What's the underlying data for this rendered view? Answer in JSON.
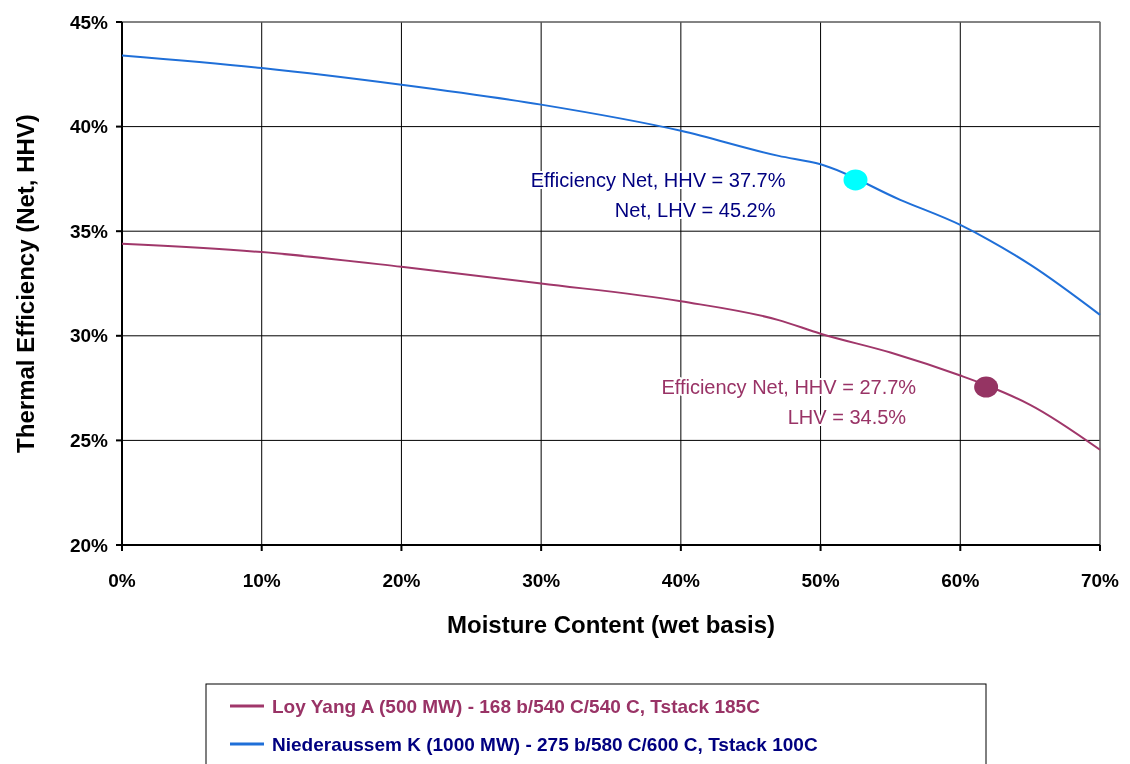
{
  "chart_data": {
    "type": "line",
    "xlabel": "Moisture Content (wet basis)",
    "ylabel": "Thermal Efficiency (Net, HHV)",
    "xlim": [
      0,
      70
    ],
    "xticks": [
      {
        "value": 0,
        "label": "0%"
      },
      {
        "value": 10,
        "label": "10%"
      },
      {
        "value": 20,
        "label": "20%"
      },
      {
        "value": 30,
        "label": "30%"
      },
      {
        "value": 40,
        "label": "40%"
      },
      {
        "value": 50,
        "label": "50%"
      },
      {
        "value": 60,
        "label": "60%"
      },
      {
        "value": 70,
        "label": "70%"
      }
    ],
    "ylim": [
      20,
      45
    ],
    "yticks": [
      {
        "value": 20,
        "label": "20%"
      },
      {
        "value": 25,
        "label": "25%"
      },
      {
        "value": 30,
        "label": "30%"
      },
      {
        "value": 35,
        "label": "35%"
      },
      {
        "value": 40,
        "label": "40%"
      },
      {
        "value": 45,
        "label": "45%"
      }
    ],
    "grid": true,
    "legend": "bottom",
    "marker": "none",
    "series": [
      {
        "name": "Loy Yang A (500 MW) - 168 b/540 C/540 C, Tstack 185C",
        "color": "#a0376a",
        "x": [
          0,
          10,
          20,
          30,
          40,
          47,
          50,
          55,
          60,
          62,
          65,
          70
        ],
        "values": [
          34.4,
          34.0,
          33.3,
          32.5,
          31.65,
          30.75,
          30.1,
          29.2,
          28.1,
          27.6,
          26.7,
          24.55
        ]
      },
      {
        "name": "Niederaussem K (1000 MW) - 275 b/580 C/600 C, Tstack 100C",
        "color": "#1f6fd8",
        "x": [
          0,
          10,
          20,
          30,
          40,
          47,
          50,
          55.7,
          60,
          62,
          65,
          70
        ],
        "values": [
          43.4,
          42.8,
          42.0,
          41.05,
          39.8,
          38.6,
          38.2,
          36.5,
          35.3,
          34.6,
          33.4,
          31.0
        ]
      },
      {
        "type": "scatter",
        "marker": "circle",
        "color": "#953463",
        "x": [
          61.85
        ],
        "values": [
          27.55
        ]
      },
      {
        "type": "scatter",
        "marker": "circle",
        "color": "#00ffff",
        "x": [
          52.5
        ],
        "values": [
          37.45
        ]
      }
    ],
    "annotations": [
      "Efficiency Net, HHV = 27.7%\nLHV = 34.5%",
      "Efficiency Net, HHV = 37.7%\nNet, LHV = 45.2%"
    ]
  }
}
